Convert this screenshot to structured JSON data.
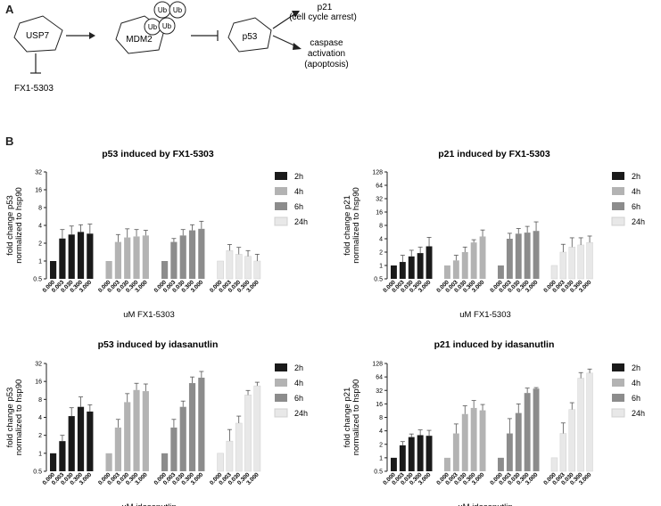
{
  "panel_a_label": "A",
  "panel_b_label": "B",
  "diagram": {
    "usp7": "USP7",
    "mdm2": "MDM2",
    "ub": "Ub",
    "p53": "p53",
    "inhibitor": "FX1-5303",
    "p21_line1": "p21",
    "p21_line2": "(cell cycle arrest)",
    "caspase_line1": "caspase",
    "caspase_line2": "activation",
    "caspase_line3": "(apoptosis)"
  },
  "colors": {
    "2h": "#1a1a1a",
    "4h": "#b3b3b3",
    "6h": "#8c8c8c",
    "24h": "#e8e8e8",
    "axis": "#222222"
  },
  "chart_data": [
    {
      "type": "bar",
      "title": "p53 induced by FX1-5303",
      "ylabel_line1": "fold change p53",
      "ylabel_line2": "normalized to hsp90",
      "xlabel": "uM FX1-5303",
      "yscale": "log2",
      "ylim": [
        0.5,
        32
      ],
      "yticks": [
        "0.5",
        "1",
        "2",
        "4",
        "8",
        "16",
        "32"
      ],
      "categories": [
        "0.000",
        "0.003",
        "0.030",
        "0.300",
        "3.000"
      ],
      "series": [
        {
          "name": "2h",
          "values": [
            1,
            2.4,
            2.8,
            3.1,
            2.9
          ],
          "errors": [
            0,
            1,
            1.1,
            1,
            1.3
          ]
        },
        {
          "name": "4h",
          "values": [
            1,
            2.1,
            2.5,
            2.6,
            2.7
          ],
          "errors": [
            0,
            0.7,
            1,
            0.8,
            0.6
          ]
        },
        {
          "name": "6h",
          "values": [
            1,
            2.1,
            2.7,
            3.3,
            3.5
          ],
          "errors": [
            0,
            0.3,
            0.7,
            0.8,
            1.2
          ]
        },
        {
          "name": "24h",
          "values": [
            1,
            1.5,
            1.3,
            1.2,
            1
          ],
          "errors": [
            0,
            0.4,
            0.4,
            0.3,
            0.3
          ]
        }
      ],
      "legend": [
        "2h",
        "4h",
        "6h",
        "24h"
      ]
    },
    {
      "type": "bar",
      "title": "p21 induced by FX1-5303",
      "ylabel_line1": "fold change p21",
      "ylabel_line2": "normalized to hsp90",
      "xlabel": "uM FX1-5303",
      "yscale": "log2",
      "ylim": [
        0.5,
        128
      ],
      "yticks": [
        "0.5",
        "1",
        "2",
        "4",
        "8",
        "16",
        "32",
        "64",
        "128"
      ],
      "categories": [
        "0.000",
        "0.003",
        "0.030",
        "0.300",
        "3.000"
      ],
      "series": [
        {
          "name": "2h",
          "values": [
            1,
            1.2,
            1.6,
            1.9,
            2.7
          ],
          "errors": [
            0,
            0.5,
            0.6,
            0.7,
            1.6
          ]
        },
        {
          "name": "4h",
          "values": [
            1,
            1.3,
            2,
            3.3,
            4.5
          ],
          "errors": [
            0,
            0.4,
            0.6,
            0.5,
            1.8
          ]
        },
        {
          "name": "6h",
          "values": [
            1,
            4,
            5.2,
            5.5,
            6
          ],
          "errors": [
            0,
            1.3,
            1.6,
            2.1,
            3.6
          ]
        },
        {
          "name": "24h",
          "values": [
            1,
            2,
            2.6,
            2.9,
            3.3
          ],
          "errors": [
            0,
            1,
            1.6,
            1.3,
            1.3
          ]
        }
      ],
      "legend": [
        "2h",
        "4h",
        "6h",
        "24h"
      ]
    },
    {
      "type": "bar",
      "title": "p53 induced by idasanutlin",
      "ylabel_line1": "fold change p53",
      "ylabel_line2": "normalized to hsp90",
      "xlabel": "uM idasanutlin",
      "yscale": "log2",
      "ylim": [
        0.5,
        32
      ],
      "yticks": [
        "0.5",
        "1",
        "2",
        "4",
        "8",
        "16",
        "32"
      ],
      "categories": [
        "0.000",
        "0.003",
        "0.030",
        "0.300",
        "3.000"
      ],
      "series": [
        {
          "name": "2h",
          "values": [
            1,
            1.6,
            4.2,
            6,
            5
          ],
          "errors": [
            0,
            0.4,
            1.6,
            2.8,
            1.5
          ]
        },
        {
          "name": "4h",
          "values": [
            1,
            2.7,
            7.2,
            11.5,
            11
          ],
          "errors": [
            0,
            1,
            2.8,
            3.4,
            3.5
          ]
        },
        {
          "name": "6h",
          "values": [
            1,
            2.7,
            6,
            15,
            18.5
          ],
          "errors": [
            0,
            1,
            1.5,
            4,
            5
          ]
        },
        {
          "name": "24h",
          "values": [
            1,
            1.6,
            3.2,
            9.5,
            13.5
          ],
          "errors": [
            0,
            0.9,
            1,
            1.8,
            2
          ]
        }
      ],
      "legend": [
        "2h",
        "4h",
        "6h",
        "24h"
      ]
    },
    {
      "type": "bar",
      "title": "p21 induced by idasanutlin",
      "ylabel_line1": "fold change p21",
      "ylabel_line2": "normalized to hsp90",
      "xlabel": "uM idasanutlin",
      "yscale": "log2",
      "ylim": [
        0.5,
        128
      ],
      "yticks": [
        "0.5",
        "1",
        "2",
        "4",
        "8",
        "16",
        "32",
        "64",
        "128"
      ],
      "categories": [
        "0.000",
        "0.003",
        "0.030",
        "0.300",
        "3.000"
      ],
      "series": [
        {
          "name": "2h",
          "values": [
            1,
            1.9,
            2.9,
            3.2,
            3.1
          ],
          "errors": [
            0,
            0.4,
            0.5,
            1,
            1
          ]
        },
        {
          "name": "4h",
          "values": [
            1,
            3.5,
            9.5,
            13,
            11.5
          ],
          "errors": [
            0,
            2.2,
            5,
            6,
            4
          ]
        },
        {
          "name": "6h",
          "values": [
            1,
            3.5,
            10,
            28,
            35
          ],
          "errors": [
            0,
            4,
            6,
            8,
            2
          ]
        },
        {
          "name": "24h",
          "values": [
            1,
            3.5,
            12,
            60,
            78
          ],
          "errors": [
            0,
            2.5,
            5,
            20,
            18
          ]
        }
      ],
      "legend": [
        "2h",
        "4h",
        "6h",
        "24h"
      ]
    }
  ]
}
